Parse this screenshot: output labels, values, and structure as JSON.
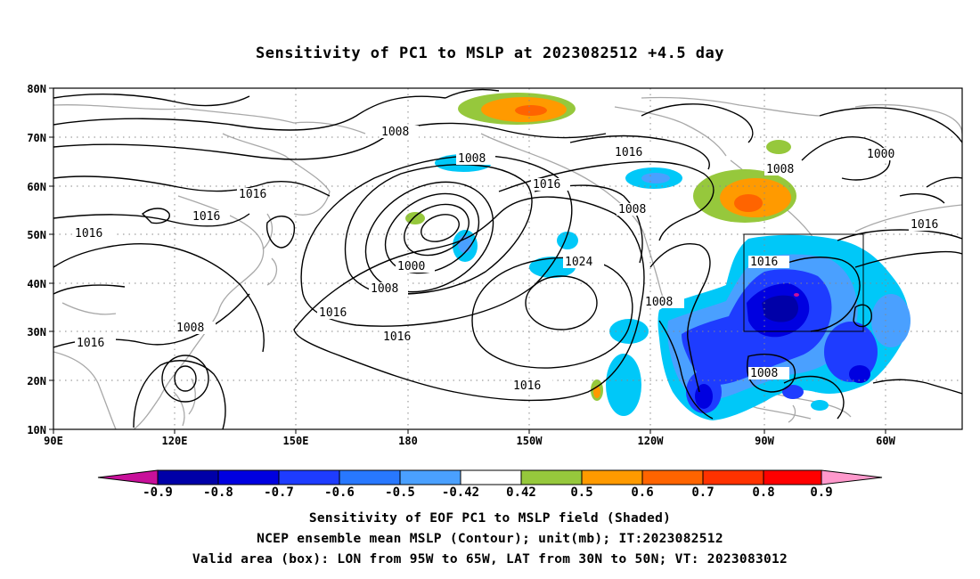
{
  "title": "Sensitivity of PC1 to MSLP at 2023082512 +4.5 day",
  "lat_labels": [
    "80N",
    "70N",
    "60N",
    "50N",
    "40N",
    "30N",
    "20N",
    "10N"
  ],
  "lon_labels": [
    "90E",
    "120E",
    "150E",
    "180",
    "150W",
    "120W",
    "90W",
    "60W"
  ],
  "contour_labels": {
    "c1008_arctic": "1008",
    "c1008_aleut": "1008",
    "c1016_pac": "1016",
    "c1016_ne": "1016",
    "c1016_asia": "1016",
    "c1016_asia2": "1016",
    "c1016_w": "1016",
    "c1000_low": "1000",
    "c1008_low": "1008",
    "c1016_low": "1016",
    "c1024_high": "1024",
    "c1016_high": "1016",
    "c1016_high_s": "1016",
    "c1008_w": "1008",
    "c1016_sw": "1016",
    "c1008_coast": "1008",
    "c1008_mex": "1008",
    "c1008_canada": "1008",
    "c1016_valid": "1016",
    "c1008_gulf": "1008",
    "c1000_hud": "1000",
    "c1016_atl": "1016",
    "c1016_w_pac": "1016"
  },
  "colorbar": {
    "labels": [
      "-0.9",
      "-0.8",
      "-0.7",
      "-0.6",
      "-0.5",
      "-0.42",
      "0.42",
      "0.5",
      "0.6",
      "0.7",
      "0.8",
      "0.9"
    ],
    "colors": [
      "#c8109a",
      "#0000a8",
      "#0000e0",
      "#1e3cff",
      "#2878ff",
      "#4aa0ff",
      "#00c8f8",
      "#ffffff",
      "#96c83c",
      "#ff9a00",
      "#ff6400",
      "#ff3200",
      "#ff0000",
      "#ff99cc"
    ]
  },
  "valid_area": {
    "lon_from": "95W",
    "lon_to": "65W",
    "lat_from": "30N",
    "lat_to": "50N"
  },
  "captions": {
    "line1": "Sensitivity of EOF PC1 to MSLP field (Shaded)",
    "line2": "NCEP ensemble mean MSLP (Contour); unit(mb); IT:2023082512",
    "line3": "Valid area (box): LON from 95W to 65W, LAT from 30N to 50N; VT: 2023083012"
  }
}
